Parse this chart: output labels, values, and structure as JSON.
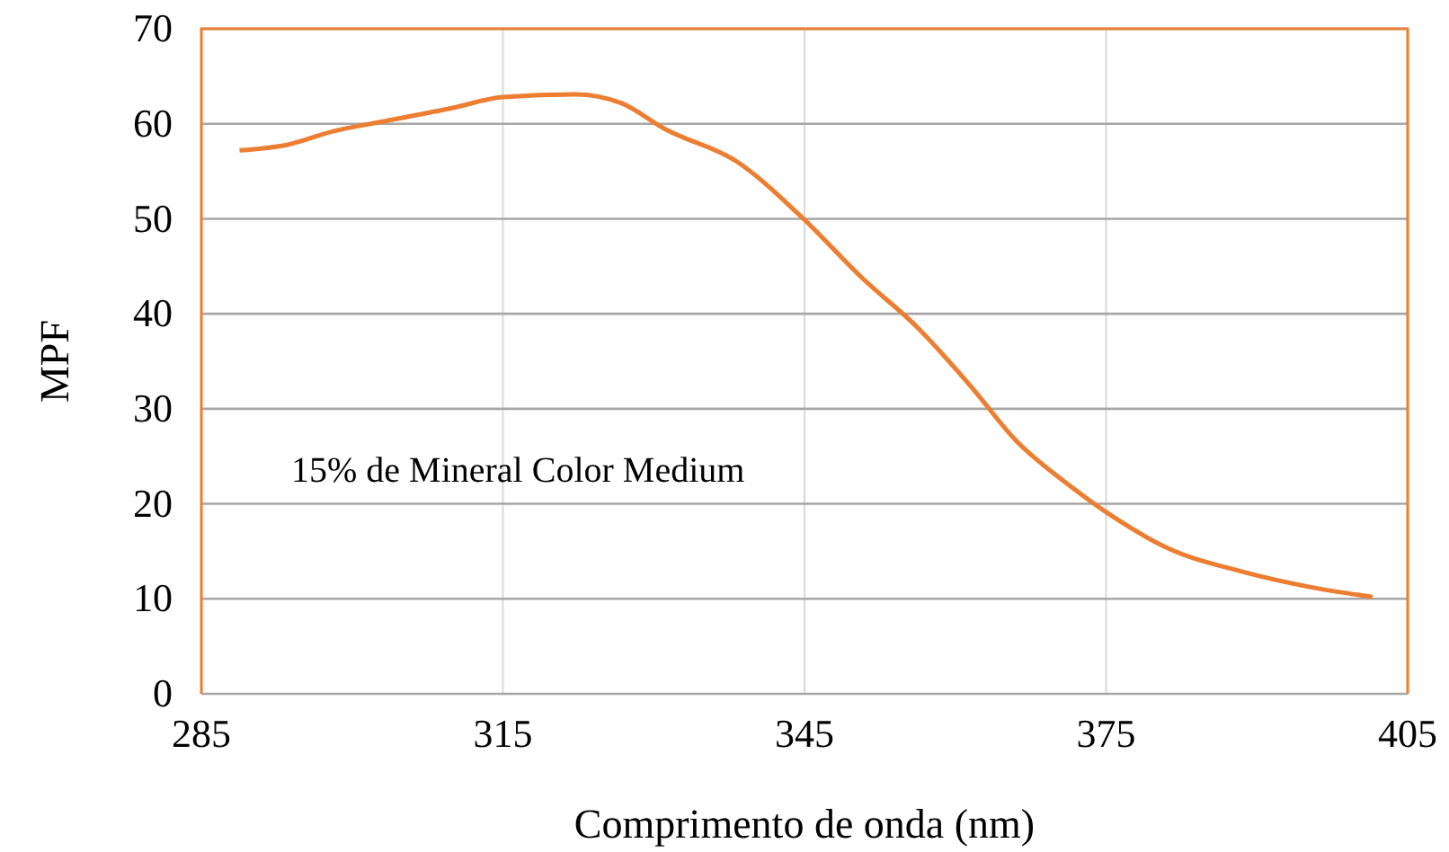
{
  "chart_data": {
    "type": "line",
    "xlabel": "Comprimento de onda (nm)",
    "ylabel": "MPF",
    "annotations": [
      "15% de Mineral Color Medium"
    ],
    "x": [
      288.8,
      293.6,
      298.1,
      303.4,
      309.7,
      315,
      322.2,
      326.7,
      331.2,
      338.3,
      344.6,
      350.8,
      356.2,
      361.6,
      366,
      371.4,
      375.9,
      381.2,
      388.4,
      395.5,
      401.5
    ],
    "series": [
      {
        "color": "#ed7d31",
        "values": [
          57.2,
          57.8,
          59.2,
          60.3,
          61.6,
          62.8,
          63.1,
          62.2,
          59.4,
          56,
          50.3,
          43.7,
          38.6,
          32.3,
          26.7,
          21.9,
          18.5,
          15.3,
          12.9,
          11.2,
          10.2
        ]
      }
    ],
    "xlim": [
      285,
      405
    ],
    "xticks": [
      285,
      315,
      345,
      375,
      405
    ],
    "ylim": [
      0,
      70
    ],
    "yticks": [
      0,
      10,
      20,
      30,
      40,
      50,
      60,
      70
    ],
    "grid": true,
    "marker": "none",
    "line_style": "solid"
  }
}
